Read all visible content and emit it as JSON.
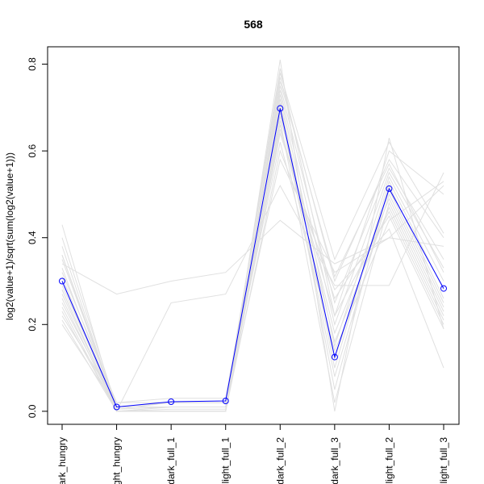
{
  "chart_data": {
    "type": "line",
    "title": "568",
    "ylabel": "log2(value+1)/sqrt(sum(log2(value+1)))",
    "xlabel": "",
    "categories": [
      "dark_hungry",
      "light_hungry",
      "dark_full_1",
      "light_full_1",
      "dark_full_2",
      "dark_full_3",
      "light_full_2",
      "light_full_3"
    ],
    "xtick_labels": [
      "ark_hungry",
      "ght_hungry",
      "dark_full_1",
      "light_full_1",
      "dark_full_2",
      "dark_full_3",
      "light_full_2",
      "light_full_3"
    ],
    "yticks": [
      0.0,
      0.2,
      0.4,
      0.6,
      0.8
    ],
    "ytick_labels": [
      "0.0",
      "0.2",
      "0.4",
      "0.6",
      "0.8"
    ],
    "ylim": [
      -0.03,
      0.84
    ],
    "grid": false,
    "highlight_series": {
      "color": "#0000ff",
      "marker": "open-circle",
      "values": [
        0.3,
        0.01,
        0.022,
        0.024,
        0.698,
        0.125,
        0.513,
        0.283
      ]
    },
    "background_series": {
      "color": "#e0e0e0",
      "values": [
        [
          0.43,
          0.0,
          0.0,
          0.0,
          0.81,
          0.0,
          0.63,
          0.19
        ],
        [
          0.4,
          0.01,
          0.01,
          0.01,
          0.79,
          0.22,
          0.6,
          0.5
        ],
        [
          0.38,
          0.005,
          0.02,
          0.02,
          0.77,
          0.3,
          0.58,
          0.4
        ],
        [
          0.36,
          0.0,
          0.0,
          0.0,
          0.75,
          0.25,
          0.56,
          0.35
        ],
        [
          0.35,
          0.01,
          0.01,
          0.01,
          0.74,
          0.2,
          0.55,
          0.33
        ],
        [
          0.33,
          0.0,
          0.005,
          0.005,
          0.73,
          0.15,
          0.54,
          0.3
        ],
        [
          0.32,
          0.02,
          0.03,
          0.03,
          0.72,
          0.1,
          0.53,
          0.28
        ],
        [
          0.31,
          0.0,
          0.0,
          0.0,
          0.71,
          0.05,
          0.52,
          0.26
        ],
        [
          0.29,
          0.01,
          0.01,
          0.01,
          0.7,
          0.12,
          0.51,
          0.25
        ],
        [
          0.28,
          0.0,
          0.0,
          0.0,
          0.69,
          0.08,
          0.5,
          0.24
        ],
        [
          0.27,
          0.005,
          0.01,
          0.01,
          0.68,
          0.18,
          0.49,
          0.23
        ],
        [
          0.26,
          0.0,
          0.0,
          0.0,
          0.67,
          0.02,
          0.48,
          0.22
        ],
        [
          0.25,
          0.01,
          0.02,
          0.02,
          0.66,
          0.16,
          0.47,
          0.21
        ],
        [
          0.24,
          0.0,
          0.0,
          0.0,
          0.65,
          0.22,
          0.46,
          0.2
        ],
        [
          0.23,
          0.0,
          0.01,
          0.01,
          0.64,
          0.26,
          0.45,
          0.19
        ],
        [
          0.22,
          0.02,
          0.02,
          0.02,
          0.62,
          0.14,
          0.44,
          0.53
        ],
        [
          0.21,
          0.0,
          0.0,
          0.0,
          0.6,
          0.28,
          0.42,
          0.1
        ],
        [
          0.2,
          0.01,
          0.01,
          0.01,
          0.58,
          0.32,
          0.4,
          0.52
        ],
        [
          0.34,
          0.27,
          0.3,
          0.32,
          0.44,
          0.34,
          0.4,
          0.38
        ],
        [
          0.28,
          0.0,
          0.25,
          0.27,
          0.52,
          0.29,
          0.29,
          0.55
        ],
        [
          0.36,
          0.01,
          0.02,
          0.02,
          0.78,
          0.35,
          0.62,
          0.41
        ],
        [
          0.3,
          0.0,
          0.0,
          0.0,
          0.76,
          0.31,
          0.57,
          0.32
        ]
      ]
    }
  }
}
